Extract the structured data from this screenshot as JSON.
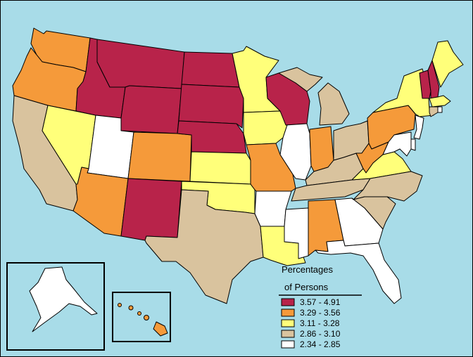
{
  "legend": {
    "title_line1": "Percentages",
    "title_line2": "of Persons",
    "classes": [
      {
        "label": "3.57 - 4.91",
        "color": "#B8234A"
      },
      {
        "label": "3.29 - 3.56",
        "color": "#F59A3A"
      },
      {
        "label": "3.11 - 3.28",
        "color": "#FFFF7A"
      },
      {
        "label": "2.86 - 3.10",
        "color": "#D9C39E"
      },
      {
        "label": "2.34 - 2.85",
        "color": "#FFFFFF"
      }
    ]
  },
  "colors": {
    "ocean": "#A8DCE8",
    "border": "#000000"
  },
  "states": {
    "WA": 1,
    "OR": 1,
    "CA": 3,
    "NV": 2,
    "ID": 0,
    "MT": 0,
    "WY": 0,
    "UT": 4,
    "AZ": 1,
    "CO": 1,
    "NM": 0,
    "ND": 0,
    "SD": 0,
    "NE": 0,
    "KS": 2,
    "OK": 2,
    "TX": 3,
    "MN": 2,
    "IA": 2,
    "MO": 1,
    "AR": 4,
    "LA": 2,
    "WI": 0,
    "IL": 4,
    "MS": 4,
    "MI": 3,
    "IN": 1,
    "KY": 3,
    "TN": 3,
    "AL": 1,
    "GA": 4,
    "FL": 4,
    "OH": 3,
    "WV": 1,
    "VA": 2,
    "NC": 3,
    "SC": 3,
    "PA": 1,
    "NY": 2,
    "VT": 0,
    "NH": 0,
    "ME": 2,
    "MA": 2,
    "CT": 3,
    "RI": 4,
    "NJ": 4,
    "DE": 4,
    "MD": 4,
    "AK": 4,
    "HI": 1
  }
}
